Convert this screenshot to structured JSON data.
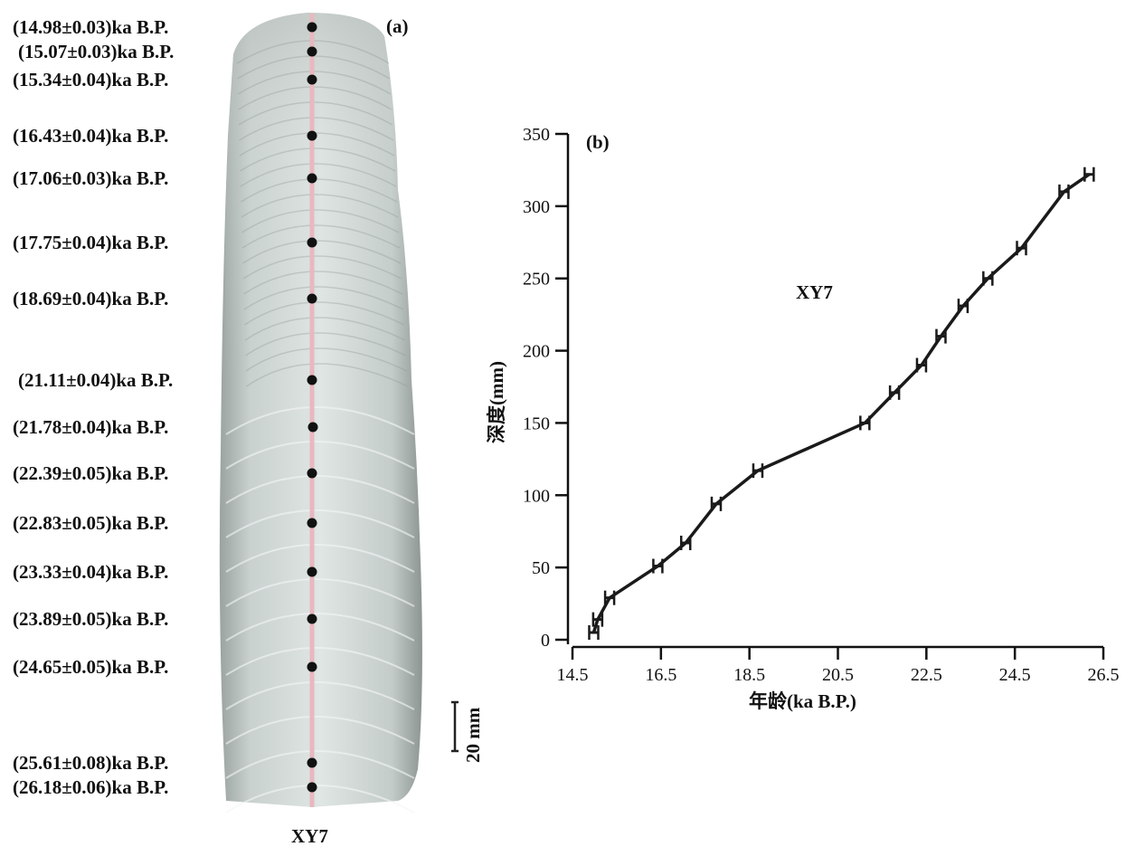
{
  "panel_a": {
    "label": "(a)",
    "sample_name": "XY7",
    "scale_bar": "20 mm",
    "dates": [
      "(14.98±0.03)ka B.P.",
      "(15.07±0.03)ka B.P.",
      "(15.34±0.04)ka B.P.",
      "(16.43±0.04)ka B.P.",
      "(17.06±0.03)ka B.P.",
      "(17.75±0.04)ka B.P.",
      "(18.69±0.04)ka B.P.",
      "(21.11±0.04)ka B.P.",
      "(21.78±0.04)ka B.P.",
      "(22.39±0.05)ka B.P.",
      "(22.83±0.05)ka B.P.",
      "(23.33±0.04)ka B.P.",
      "(23.89±0.05)ka B.P.",
      "(24.65±0.05)ka B.P.",
      "(25.61±0.08)ka B.P.",
      "(26.18±0.06)ka B.P."
    ]
  },
  "chart_data": {
    "type": "line",
    "panel_label": "(b)",
    "annotation": "XY7",
    "xlabel": "年龄(ka B.P.)",
    "ylabel": "深度(mm)",
    "xlim": [
      14.5,
      26.5
    ],
    "ylim": [
      0,
      350
    ],
    "xticks": [
      "14.5",
      "16.5",
      "18.5",
      "20.5",
      "22.5",
      "24.5",
      "26.5"
    ],
    "yticks": [
      "0",
      "50",
      "100",
      "150",
      "200",
      "250",
      "300",
      "350"
    ],
    "grid": false,
    "series": [
      {
        "x": [
          14.98,
          15.07,
          15.34,
          16.43,
          17.06,
          17.75,
          18.69,
          21.11,
          21.78,
          22.39,
          22.83,
          23.33,
          23.89,
          24.65,
          25.61,
          26.18
        ],
        "y": [
          5,
          14,
          29,
          51,
          67,
          94,
          117,
          150,
          171,
          190,
          210,
          231,
          250,
          271,
          310,
          322
        ],
        "xerr": [
          0.03,
          0.03,
          0.04,
          0.04,
          0.03,
          0.04,
          0.04,
          0.04,
          0.04,
          0.05,
          0.05,
          0.04,
          0.05,
          0.05,
          0.08,
          0.06
        ]
      }
    ],
    "line_color": "#1a1a1a"
  }
}
